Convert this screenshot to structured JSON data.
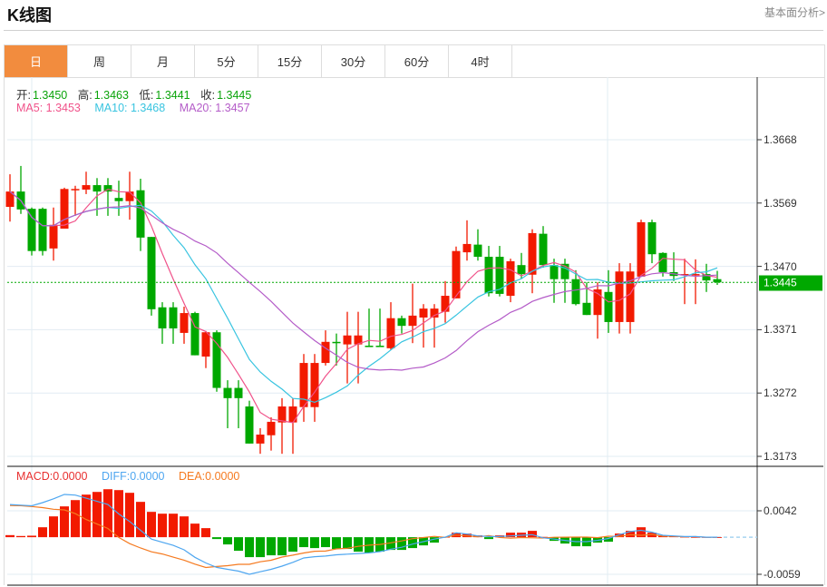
{
  "header": {
    "title": "K线图",
    "link": "基本面分析>"
  },
  "tabs": [
    {
      "label": "日",
      "active": true
    },
    {
      "label": "周"
    },
    {
      "label": "月"
    },
    {
      "label": "5分"
    },
    {
      "label": "15分"
    },
    {
      "label": "30分"
    },
    {
      "label": "60分"
    },
    {
      "label": "4时"
    }
  ],
  "ohlc_info": {
    "open_label": "开:",
    "open": "1.3450",
    "high_label": "高:",
    "high": "1.3463",
    "low_label": "低:",
    "low": "1.3441",
    "close_label": "收:",
    "close": "1.3445"
  },
  "ma_info": {
    "ma5": "MA5: 1.3453",
    "ma10": "MA10: 1.3468",
    "ma20": "MA20: 1.3457"
  },
  "macd_info": {
    "macd": "MACD:0.0000",
    "diff": "DIFF:0.0000",
    "dea": "DEA:0.0000"
  },
  "current_price": "1.3445",
  "colors": {
    "up": "#f21a00",
    "down": "#00a800",
    "ma5": "#f0528a",
    "ma10": "#38c4e0",
    "ma20": "#b45cc8",
    "diff": "#4ea6f0",
    "dea": "#f57a20",
    "accent": "#f28c3e"
  },
  "chart_data": {
    "type": "candlestick",
    "price_axis": {
      "ticks": [
        "1.3668",
        "1.3569",
        "1.3470",
        "1.3371",
        "1.3272",
        "1.3173"
      ],
      "range": [
        1.3173,
        1.3668
      ]
    },
    "macd_axis": {
      "ticks": [
        "0.0042",
        "-0.0059"
      ],
      "range": [
        -0.0059,
        0.0042
      ]
    },
    "candles": [
      [
        1.3563,
        1.3614,
        1.354,
        1.3587
      ],
      [
        1.3587,
        1.3627,
        1.3552,
        1.3559
      ],
      [
        1.356,
        1.3562,
        1.3487,
        1.3494
      ],
      [
        1.356,
        1.3562,
        1.3487,
        1.3494
      ],
      [
        1.3498,
        1.3562,
        1.3479,
        1.3535
      ],
      [
        1.3529,
        1.3593,
        1.3529,
        1.3591
      ],
      [
        1.359,
        1.3596,
        1.3549,
        1.3591
      ],
      [
        1.359,
        1.3618,
        1.3583,
        1.3597
      ],
      [
        1.3597,
        1.3608,
        1.3549,
        1.3587
      ],
      [
        1.3597,
        1.3608,
        1.3549,
        1.3587
      ],
      [
        1.3577,
        1.3604,
        1.3549,
        1.3572
      ],
      [
        1.3572,
        1.3618,
        1.3543,
        1.3587
      ],
      [
        1.3589,
        1.3607,
        1.3494,
        1.3515
      ],
      [
        1.3516,
        1.3516,
        1.3393,
        1.3403
      ],
      [
        1.3406,
        1.3414,
        1.3349,
        1.3373
      ],
      [
        1.3406,
        1.3414,
        1.3349,
        1.3373
      ],
      [
        1.3366,
        1.3407,
        1.3349,
        1.3397
      ],
      [
        1.3397,
        1.3399,
        1.3331,
        1.3331
      ],
      [
        1.3329,
        1.3369,
        1.3311,
        1.3367
      ],
      [
        1.3367,
        1.337,
        1.3274,
        1.328
      ],
      [
        1.328,
        1.3292,
        1.3217,
        1.3264
      ],
      [
        1.328,
        1.3292,
        1.3217,
        1.3264
      ],
      [
        1.3251,
        1.326,
        1.3193,
        1.3193
      ],
      [
        1.3193,
        1.3217,
        1.3177,
        1.3207
      ],
      [
        1.3206,
        1.3234,
        1.3182,
        1.3227
      ],
      [
        1.3226,
        1.3264,
        1.3177,
        1.3251
      ],
      [
        1.3226,
        1.3264,
        1.3177,
        1.3251
      ],
      [
        1.325,
        1.3333,
        1.3227,
        1.3319
      ],
      [
        1.325,
        1.3333,
        1.3227,
        1.3319
      ],
      [
        1.3319,
        1.337,
        1.3315,
        1.3352
      ],
      [
        1.3352,
        1.3365,
        1.3315,
        1.335
      ],
      [
        1.3348,
        1.3399,
        1.3287,
        1.3362
      ],
      [
        1.3348,
        1.3399,
        1.3287,
        1.3362
      ],
      [
        1.3346,
        1.3404,
        1.3345,
        1.3345
      ],
      [
        1.3346,
        1.3404,
        1.3345,
        1.3345
      ],
      [
        1.3342,
        1.3414,
        1.3339,
        1.3389
      ],
      [
        1.3389,
        1.3393,
        1.3365,
        1.3377
      ],
      [
        1.3377,
        1.3443,
        1.335,
        1.3393
      ],
      [
        1.339,
        1.3411,
        1.3343,
        1.3404
      ],
      [
        1.339,
        1.3411,
        1.3343,
        1.3404
      ],
      [
        1.3399,
        1.3447,
        1.3382,
        1.3424
      ],
      [
        1.342,
        1.3501,
        1.342,
        1.3494
      ],
      [
        1.3492,
        1.3542,
        1.3479,
        1.3505
      ],
      [
        1.3504,
        1.3528,
        1.3479,
        1.3485
      ],
      [
        1.3485,
        1.3502,
        1.3423,
        1.3428
      ],
      [
        1.3485,
        1.3502,
        1.3423,
        1.3427
      ],
      [
        1.3424,
        1.3482,
        1.3414,
        1.3478
      ],
      [
        1.3472,
        1.3491,
        1.3451,
        1.3458
      ],
      [
        1.3457,
        1.3528,
        1.3428,
        1.3522
      ],
      [
        1.3521,
        1.3533,
        1.3468,
        1.3472
      ],
      [
        1.3472,
        1.3482,
        1.3413,
        1.345
      ],
      [
        1.3474,
        1.3482,
        1.3413,
        1.345
      ],
      [
        1.345,
        1.3464,
        1.3409,
        1.3411
      ],
      [
        1.3413,
        1.3445,
        1.3394,
        1.3394
      ],
      [
        1.3394,
        1.3445,
        1.3357,
        1.3434
      ],
      [
        1.343,
        1.3464,
        1.3366,
        1.3383
      ],
      [
        1.3383,
        1.3475,
        1.3365,
        1.3462
      ],
      [
        1.3383,
        1.3475,
        1.3365,
        1.3462
      ],
      [
        1.3454,
        1.3543,
        1.3454,
        1.3539
      ],
      [
        1.3539,
        1.3543,
        1.3475,
        1.3489
      ],
      [
        1.3491,
        1.3492,
        1.3454,
        1.3461
      ],
      [
        1.3461,
        1.3492,
        1.3447,
        1.3455
      ],
      [
        1.3457,
        1.3482,
        1.3411,
        1.3458
      ],
      [
        1.3457,
        1.3481,
        1.3411,
        1.3458
      ],
      [
        1.3458,
        1.3474,
        1.343,
        1.3448
      ],
      [
        1.345,
        1.3463,
        1.3441,
        1.3445
      ]
    ],
    "macd_hist": [
      0.00033,
      0.00019,
      0.00024,
      0.00158,
      0.00331,
      0.0049,
      0.0059,
      0.00677,
      0.0072,
      0.00763,
      0.00749,
      0.00706,
      0.00562,
      0.00403,
      0.00374,
      0.00374,
      0.00331,
      0.00216,
      0.00144,
      -0.00029,
      -0.00115,
      -0.00216,
      -0.00317,
      -0.00317,
      -0.00288,
      -0.00288,
      -0.0023,
      -0.00158,
      -0.00173,
      -0.00158,
      -0.00187,
      -0.00187,
      -0.0023,
      -0.00245,
      -0.0023,
      -0.00202,
      -0.00202,
      -0.00173,
      -0.0013,
      -0.00086,
      5e-05,
      0.00072,
      0.00058,
      0.00029,
      -0.00029,
      0.00029,
      0.00072,
      0.00072,
      0.00101,
      5e-05,
      -0.00058,
      -0.00101,
      -0.00144,
      -0.00144,
      -0.00086,
      -0.00072,
      0.00058,
      0.00101,
      0.00158,
      0.00072,
      0.00029,
      0.00014,
      7e-05,
      3e-05,
      2e-05,
      1e-05
    ],
    "diff": [
      0.0052,
      0.0051,
      0.005,
      0.0055,
      0.0061,
      0.0068,
      0.0067,
      0.0062,
      0.0057,
      0.0052,
      0.0037,
      0.0025,
      0.0011,
      -0.0003,
      -0.0008,
      -0.0013,
      -0.002,
      -0.0032,
      -0.0041,
      -0.0048,
      -0.0051,
      -0.0054,
      -0.0059,
      -0.0055,
      -0.0051,
      -0.0046,
      -0.004,
      -0.0033,
      -0.0031,
      -0.003,
      -0.0028,
      -0.0027,
      -0.0026,
      -0.0025,
      -0.0023,
      -0.0019,
      -0.0016,
      -0.0011,
      -0.0007,
      -0.0003,
      0.0,
      0.0007,
      0.0005,
      0.0002,
      0.0001,
      0.0001,
      0.0002,
      0.0003,
      0.0004,
      -0.0001,
      -0.0003,
      -0.0005,
      -0.0007,
      -0.0007,
      -0.0005,
      -0.0002,
      0.0004,
      0.0009,
      0.0011,
      0.0008,
      0.0003,
      0.0002,
      0.0001,
      0.0001,
      0.0,
      0.0
    ]
  }
}
